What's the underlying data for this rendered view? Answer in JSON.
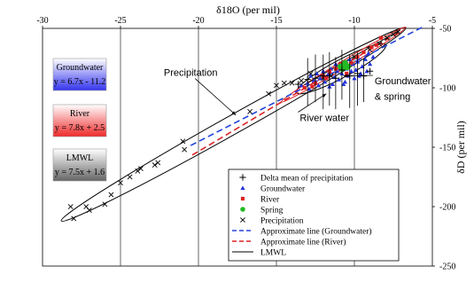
{
  "chart_data": {
    "type": "scatter",
    "title": "",
    "xlabel": "δ18O (per mil)",
    "ylabel": "δD (per mil)",
    "xlim": [
      -30,
      -5
    ],
    "ylim": [
      -250,
      -50
    ],
    "x_ticks": [
      "-30",
      "-25",
      "-20",
      "-15",
      "-10",
      "-5"
    ],
    "y_ticks": [
      "-50",
      "-100",
      "-150",
      "-200",
      "-250"
    ],
    "grid": "vertical",
    "legend_placement": "bottom-right",
    "equation_boxes": [
      {
        "name": "Groundwater",
        "equation": "y = 6.7x - 11.2",
        "color": "#3333ee"
      },
      {
        "name": "River",
        "equation": "y = 7.8x + 2.5",
        "color": "#ee2a2a"
      },
      {
        "name": "LMWL",
        "equation": "y = 7.5x + 1.6",
        "color": "#666666"
      }
    ],
    "annotations": [
      {
        "text": "Precipitation",
        "at": [
          -20.5,
          -90
        ],
        "arrow_to": [
          -17.6,
          -123
        ]
      },
      {
        "text": "Groundwater",
        "at": [
          -8.7,
          -97
        ],
        "arrow_to": [
          -10.7,
          -90
        ]
      },
      {
        "text": "& spring",
        "at": [
          -8.7,
          -110
        ],
        "arrow_to": null
      },
      {
        "text": "River water",
        "at": [
          -13.5,
          -128
        ],
        "arrow_to": [
          -11.8,
          -105
        ]
      }
    ],
    "legend": [
      {
        "label": "Delta mean of precipitation",
        "marker": "plus",
        "color": "#000000"
      },
      {
        "label": "Groundwater",
        "marker": "triangle",
        "color": "#2233dd"
      },
      {
        "label": "River",
        "marker": "square",
        "color": "#dd2222"
      },
      {
        "label": "Spring",
        "marker": "circle",
        "color": "#22bb22"
      },
      {
        "label": "Precipitation",
        "marker": "cross",
        "color": "#000000"
      },
      {
        "label": "Approximate line (Groundwater)",
        "marker": "dash",
        "color": "#2244dd"
      },
      {
        "label": "Approximate line (River)",
        "marker": "dash",
        "color": "#dd2222"
      },
      {
        "label": "LMWL",
        "marker": "solid",
        "color": "#000000"
      }
    ],
    "series": [
      {
        "name": "Precipitation",
        "marker": "cross",
        "color": "#000000",
        "points": [
          [
            -28.2,
            -200
          ],
          [
            -28.0,
            -210
          ],
          [
            -27.2,
            -200
          ],
          [
            -27.0,
            -203
          ],
          [
            -26.0,
            -198
          ],
          [
            -25.6,
            -190
          ],
          [
            -25.0,
            -180
          ],
          [
            -24.4,
            -175
          ],
          [
            -23.9,
            -170
          ],
          [
            -23.7,
            -168
          ],
          [
            -22.8,
            -165
          ],
          [
            -22.6,
            -163
          ],
          [
            -21.0,
            -145
          ],
          [
            -20.9,
            -152
          ],
          [
            -16.7,
            -120
          ],
          [
            -15.5,
            -105
          ],
          [
            -15.0,
            -98
          ],
          [
            -14.5,
            -96
          ],
          [
            -14.0,
            -96
          ],
          [
            -13.4,
            -94
          ],
          [
            -12.8,
            -88
          ],
          [
            -12.0,
            -92
          ],
          [
            -11.5,
            -90
          ],
          [
            -10.8,
            -80
          ],
          [
            -10.0,
            -74
          ],
          [
            -9.0,
            -68
          ],
          [
            -8.4,
            -63
          ],
          [
            -7.9,
            -58
          ],
          [
            -7.5,
            -55
          ],
          [
            -7.2,
            -53
          ]
        ]
      },
      {
        "name": "Groundwater",
        "marker": "triangle",
        "color": "#2233dd",
        "points": [
          [
            -13.0,
            -96
          ],
          [
            -12.8,
            -90
          ],
          [
            -12.6,
            -94
          ],
          [
            -12.4,
            -88
          ],
          [
            -12.2,
            -92
          ],
          [
            -12.0,
            -86
          ],
          [
            -11.9,
            -95
          ],
          [
            -11.7,
            -89
          ],
          [
            -11.5,
            -84
          ],
          [
            -11.4,
            -97
          ],
          [
            -11.3,
            -91
          ],
          [
            -11.1,
            -86
          ],
          [
            -11.0,
            -93
          ],
          [
            -10.9,
            -82
          ],
          [
            -10.8,
            -88
          ],
          [
            -10.6,
            -95
          ],
          [
            -10.5,
            -84
          ],
          [
            -10.4,
            -90
          ],
          [
            -10.2,
            -86
          ],
          [
            -10.1,
            -80
          ],
          [
            -10.0,
            -92
          ],
          [
            -9.9,
            -85
          ],
          [
            -9.8,
            -78
          ],
          [
            -9.6,
            -88
          ],
          [
            -9.5,
            -82
          ],
          [
            -9.3,
            -76
          ],
          [
            -9.2,
            -86
          ],
          [
            -9.0,
            -80
          ],
          [
            -8.8,
            -74
          ],
          [
            -12.3,
            -98
          ],
          [
            -11.6,
            -99
          ],
          [
            -10.7,
            -97
          ],
          [
            -9.7,
            -90
          ],
          [
            -13.4,
            -98
          ],
          [
            -12.9,
            -101
          ],
          [
            -11.2,
            -80
          ],
          [
            -10.3,
            -76
          ],
          [
            -9.1,
            -71
          ]
        ]
      },
      {
        "name": "River",
        "marker": "square",
        "color": "#dd2222",
        "points": [
          [
            -13.2,
            -100
          ],
          [
            -12.5,
            -96
          ],
          [
            -12.0,
            -90
          ],
          [
            -11.6,
            -86
          ],
          [
            -11.2,
            -84
          ],
          [
            -10.9,
            -80
          ],
          [
            -10.5,
            -88
          ],
          [
            -10.2,
            -79
          ],
          [
            -9.8,
            -74
          ],
          [
            -9.4,
            -70
          ],
          [
            -8.9,
            -66
          ],
          [
            -8.6,
            -64
          ],
          [
            -8.3,
            -58
          ],
          [
            -11.8,
            -92
          ],
          [
            -12.7,
            -99
          ]
        ]
      },
      {
        "name": "Spring",
        "marker": "circle",
        "color": "#22bb22",
        "points": [
          [
            -10.7,
            -81
          ],
          [
            -10.5,
            -83
          ],
          [
            -10.8,
            -84
          ],
          [
            -10.6,
            -79
          ],
          [
            -10.4,
            -82
          ],
          [
            -10.9,
            -82
          ]
        ]
      },
      {
        "name": "Delta mean of precipitation",
        "marker": "plus",
        "color": "#000000",
        "points": [
          [
            -13.6,
            -97
          ],
          [
            -13.0,
            -93
          ],
          [
            -12.5,
            -92
          ],
          [
            -12.0,
            -90
          ],
          [
            -11.6,
            -90
          ],
          [
            -11.2,
            -92
          ],
          [
            -10.8,
            -85
          ],
          [
            -10.3,
            -90
          ],
          [
            -9.8,
            -88
          ],
          [
            -9.4,
            -90
          ],
          [
            -9.0,
            -86
          ]
        ],
        "vertical_ranges": [
          [
            -13.0,
            -75,
            -115
          ],
          [
            -12.5,
            -72,
            -112
          ],
          [
            -12.0,
            -72,
            -118
          ],
          [
            -11.6,
            -70,
            -115
          ],
          [
            -11.2,
            -74,
            -118
          ],
          [
            -10.8,
            -68,
            -110
          ],
          [
            -10.3,
            -72,
            -117
          ],
          [
            -9.8,
            -70,
            -115
          ],
          [
            -9.4,
            -75,
            -112
          ]
        ]
      }
    ],
    "lines": [
      {
        "name": "LMWL",
        "style": "solid",
        "color": "#000000",
        "from": [
          -13.2,
          -97.4
        ],
        "to": [
          -7.1,
          -51.65
        ]
      },
      {
        "name": "Approximate line (Groundwater)",
        "style": "dash",
        "color": "#2244dd",
        "from": [
          -20.5,
          -148.55
        ],
        "to": [
          -5.6,
          -48.72
        ]
      },
      {
        "name": "Approximate line (River)",
        "style": "dash",
        "color": "#dd2222",
        "from": [
          -20.4,
          -156.62
        ],
        "to": [
          -7.2,
          -53.66
        ]
      }
    ],
    "ellipses": [
      {
        "name": "Precipitation",
        "color": "#000000",
        "a": [
          -28.8,
          -212
        ],
        "b": [
          -6.7,
          -49.5
        ],
        "width": 10.5
      },
      {
        "name": "Groundwater & spring",
        "color": "#000000",
        "a": [
          -13.7,
          -104
        ],
        "b": [
          -8.0,
          -64
        ],
        "width": 10
      },
      {
        "name": "River water",
        "color": "#dd2222",
        "a": [
          -14.7,
          -112
        ],
        "b": [
          -6.7,
          -49
        ],
        "width": 4
      }
    ]
  }
}
